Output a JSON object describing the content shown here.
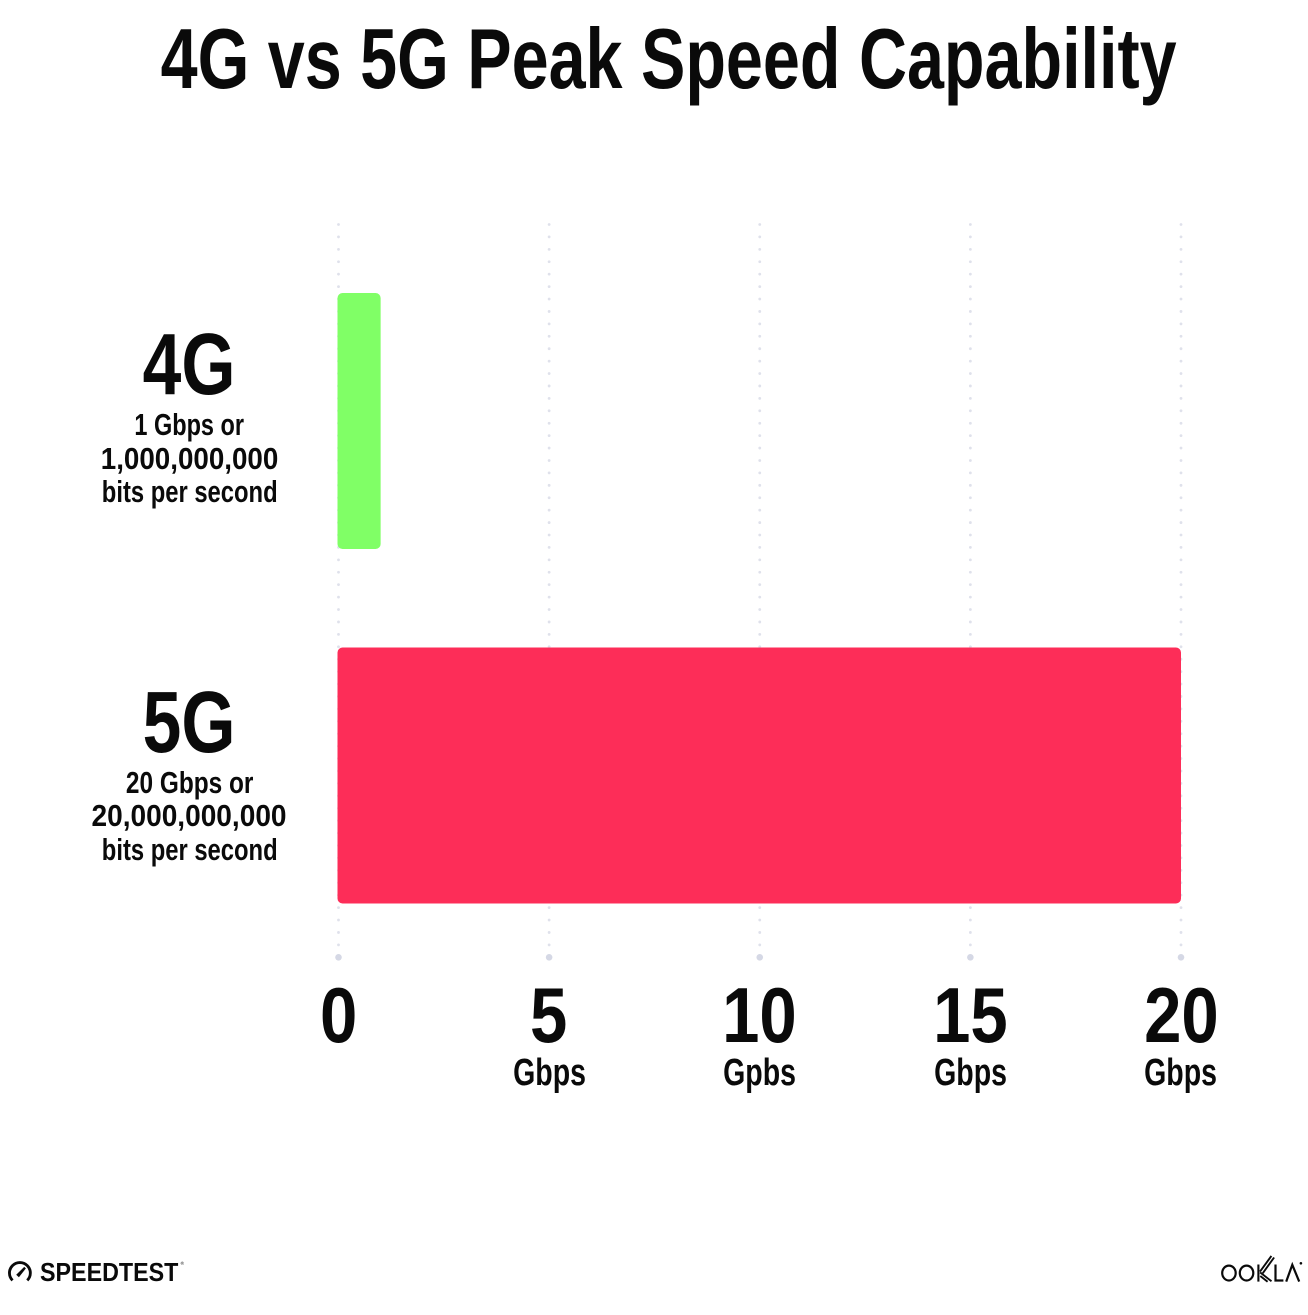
{
  "title": "4G vs 5G Peak Speed Capability",
  "rows": [
    {
      "name": "4G",
      "desc": [
        "1 Gbps or",
        "1,000,000,000",
        "bits per second"
      ],
      "value": 1,
      "color": "#80ff66"
    },
    {
      "name": "5G",
      "desc": [
        "20 Gbps or",
        "20,000,000,000",
        "bits per second"
      ],
      "value": 20,
      "color": "#fd2d58"
    }
  ],
  "axis": {
    "ticks": [
      {
        "value": 0,
        "label": "0",
        "unit": ""
      },
      {
        "value": 5,
        "label": "5",
        "unit": "Gbps"
      },
      {
        "value": 10,
        "label": "10",
        "unit": "Gpbs"
      },
      {
        "value": 15,
        "label": "15",
        "unit": "Gbps"
      },
      {
        "value": 20,
        "label": "20",
        "unit": "Gbps"
      }
    ]
  },
  "footer": {
    "speedtest_label": "SPEEDTEST",
    "speedtest_reg_mark": "®",
    "ookla_label": "OOKLA"
  },
  "colors": {
    "bar_4g": "#80ff66",
    "bar_5g": "#fd2d58",
    "grid_dot": "#dfe1eb",
    "grid_end_dot": "#d5d8e5",
    "text": "#0a0a0a"
  },
  "chart_data": {
    "type": "bar",
    "orientation": "horizontal",
    "title": "4G vs 5G Peak Speed Capability",
    "categories": [
      "4G",
      "5G"
    ],
    "values": [
      1,
      20
    ],
    "value_unit": "Gbps",
    "bar_labels": [
      [
        "1 Gbps or",
        "1,000,000,000",
        "bits per second"
      ],
      [
        "20 Gbps or",
        "20,000,000,000",
        "bits per second"
      ]
    ],
    "bar_colors": [
      "#80ff66",
      "#fd2d58"
    ],
    "xlabel": "",
    "ylabel": "",
    "xlim": [
      0,
      20
    ],
    "x_tick_values": [
      0,
      5,
      10,
      15,
      20
    ],
    "x_tick_labels": [
      "0",
      "5",
      "10",
      "15",
      "20"
    ],
    "x_tick_units": [
      "",
      "Gbps",
      "Gpbs",
      "Gbps",
      "Gbps"
    ],
    "grid": "vertical-dotted",
    "legend": "none"
  }
}
